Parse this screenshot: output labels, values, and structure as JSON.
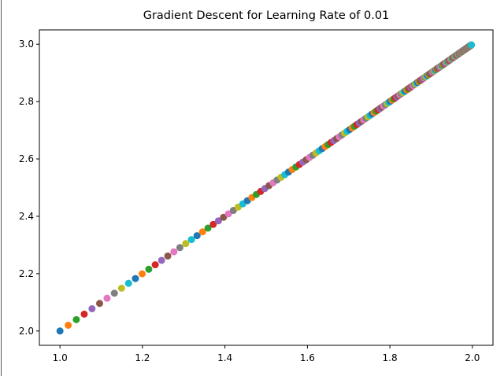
{
  "chart_data": {
    "type": "scatter",
    "title": "Gradient Descent for Learning Rate of 0.01",
    "xlabel": "",
    "ylabel": "",
    "xlim": [
      0.95,
      2.05
    ],
    "ylim": [
      1.95,
      3.05
    ],
    "xticks": [
      {
        "value": 1.0,
        "label": "1.0"
      },
      {
        "value": 1.2,
        "label": "1.2"
      },
      {
        "value": 1.4,
        "label": "1.4"
      },
      {
        "value": 1.6,
        "label": "1.6"
      },
      {
        "value": 1.8,
        "label": "1.8"
      },
      {
        "value": 2.0,
        "label": "2.0"
      }
    ],
    "yticks": [
      {
        "value": 2.0,
        "label": "2.0"
      },
      {
        "value": 2.2,
        "label": "2.2"
      },
      {
        "value": 2.4,
        "label": "2.4"
      },
      {
        "value": 2.6,
        "label": "2.6"
      },
      {
        "value": 2.8,
        "label": "2.8"
      },
      {
        "value": 3.0,
        "label": "3.0"
      }
    ],
    "grid": false,
    "legend": "none",
    "series_start": {
      "x": 1.0,
      "y": 2.0
    },
    "series_target": {
      "x": 2.0,
      "y": 3.0
    },
    "step_factor": 0.98,
    "num_points": 300,
    "palette": [
      "#1f77b4",
      "#ff7f0e",
      "#2ca02c",
      "#d62728",
      "#9467bd",
      "#8c564b",
      "#e377c2",
      "#7f7f7f",
      "#bcbd22",
      "#17becf"
    ]
  }
}
